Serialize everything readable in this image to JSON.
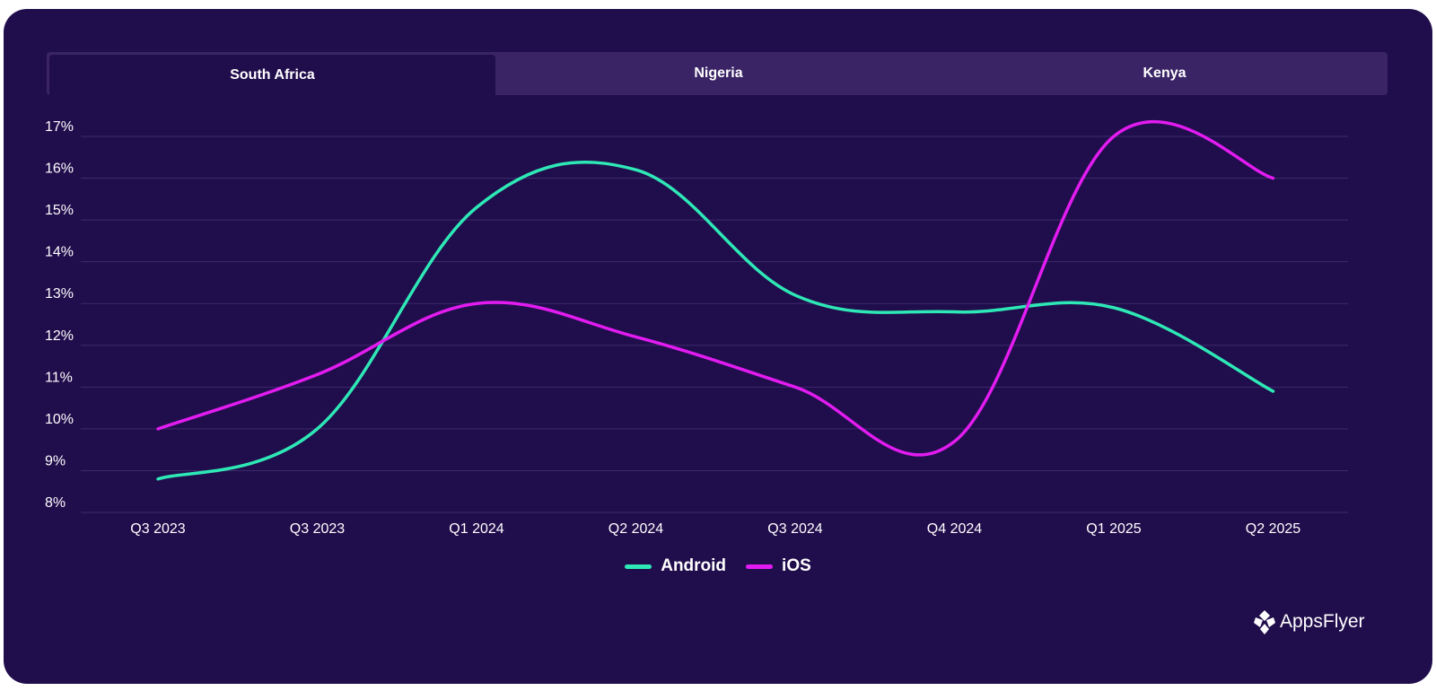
{
  "tabs": [
    {
      "label": "South Africa",
      "active": true
    },
    {
      "label": "Nigeria",
      "active": false
    },
    {
      "label": "Kenya",
      "active": false
    }
  ],
  "colors": {
    "background": "#200d4c",
    "android": "#2ee8b6",
    "ios": "#e21cf0",
    "grid": "#3d2a6b",
    "tab_bar": "#3a2466"
  },
  "logo": {
    "text": "AppsFlyer",
    "icon": "appsflyer-logo-icon"
  },
  "chart_data": {
    "type": "line",
    "categories": [
      "Q3 2023",
      "Q3 2023",
      "Q1 2024",
      "Q2 2024",
      "Q3 2024",
      "Q4 2024",
      "Q1 2025",
      "Q2 2025"
    ],
    "y_ticks": [
      "8%",
      "9%",
      "10%",
      "11%",
      "12%",
      "13%",
      "14%",
      "15%",
      "16%",
      "17%"
    ],
    "ylim": [
      8,
      17
    ],
    "grid": true,
    "legend_position": "bottom-center",
    "series": [
      {
        "name": "Android",
        "color": "#2ee8b6",
        "values": [
          8.8,
          10.0,
          15.3,
          16.2,
          13.2,
          12.8,
          12.9,
          10.9
        ]
      },
      {
        "name": "iOS",
        "color": "#e21cf0",
        "values": [
          10.0,
          11.3,
          13.0,
          12.2,
          11.0,
          9.7,
          17.0,
          16.0
        ]
      }
    ]
  }
}
